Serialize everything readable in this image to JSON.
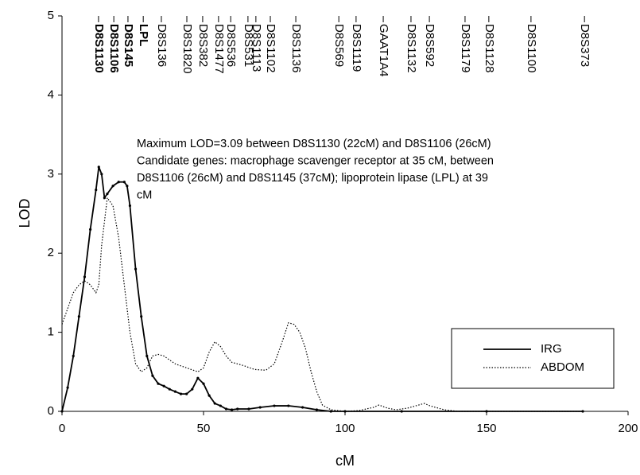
{
  "chart_data": {
    "type": "line",
    "xlabel": "cM",
    "ylabel": "LOD",
    "xlim": [
      0,
      200
    ],
    "xticks": [
      0,
      50,
      100,
      150,
      200
    ],
    "ylim": [
      0,
      5
    ],
    "yticks": [
      0,
      1,
      2,
      3,
      4,
      5
    ],
    "legend": "lower right",
    "annotation": [
      "Maximum LOD=3.09 between D8S1130 (22cM) and D8S1106 (26cM)",
      "Candidate genes: macrophage scavenger receptor at 35 cM, between",
      "D8S1106 (26cM) and D8S1145 (37cM); lipoprotein lipase (LPL) at 39",
      "cM"
    ],
    "markers": [
      {
        "name": "D8S1130",
        "x": 12.9,
        "bold": true
      },
      {
        "name": "D8S1106",
        "x": 18.3,
        "bold": true
      },
      {
        "name": "D8S145",
        "x": 23.3,
        "bold": true
      },
      {
        "name": "LPL",
        "x": 28.7,
        "bold": true
      },
      {
        "name": "D8S136",
        "x": 35.1,
        "bold": false
      },
      {
        "name": "D8S1820",
        "x": 44.1,
        "bold": false
      },
      {
        "name": "D8S382",
        "x": 49.7,
        "bold": false
      },
      {
        "name": "D8S1477",
        "x": 55.3,
        "bold": false
      },
      {
        "name": "D8S536",
        "x": 59.6,
        "bold": false
      },
      {
        "name": "D8S531",
        "x": 65.7,
        "bold": false
      },
      {
        "name": "D8S1113",
        "x": 68.5,
        "bold": false
      },
      {
        "name": "D8S1102",
        "x": 73.6,
        "bold": false
      },
      {
        "name": "D8S1136",
        "x": 82.6,
        "bold": false
      },
      {
        "name": "D8S569",
        "x": 97.8,
        "bold": false
      },
      {
        "name": "D8S1119",
        "x": 103.9,
        "bold": false
      },
      {
        "name": "GAAT1A4",
        "x": 113.5,
        "bold": false
      },
      {
        "name": "D8S1132",
        "x": 123.3,
        "bold": false
      },
      {
        "name": "D8S592",
        "x": 129.8,
        "bold": false
      },
      {
        "name": "D8S1179",
        "x": 142.4,
        "bold": false
      },
      {
        "name": "D8S1128",
        "x": 150.8,
        "bold": false
      },
      {
        "name": "D8S1100",
        "x": 165.7,
        "bold": false
      },
      {
        "name": "D8S373",
        "x": 184.6,
        "bold": false
      }
    ],
    "series": [
      {
        "name": "IRG",
        "color": "#000000",
        "style": "solid",
        "x": [
          0,
          2,
          4,
          6,
          8,
          10,
          12,
          13,
          14,
          15,
          16,
          18,
          20,
          22,
          23,
          24,
          26,
          28,
          30,
          32,
          34,
          36,
          38,
          40,
          42,
          44,
          46,
          48,
          50,
          52,
          54,
          56,
          58,
          60,
          62,
          66,
          70,
          75,
          80,
          85,
          90,
          95,
          100,
          120,
          150,
          184
        ],
        "values": [
          0,
          0.3,
          0.7,
          1.2,
          1.7,
          2.3,
          2.8,
          3.09,
          3.0,
          2.7,
          2.75,
          2.85,
          2.9,
          2.9,
          2.85,
          2.6,
          1.8,
          1.2,
          0.7,
          0.45,
          0.35,
          0.32,
          0.28,
          0.25,
          0.22,
          0.22,
          0.28,
          0.42,
          0.35,
          0.2,
          0.1,
          0.07,
          0.03,
          0.02,
          0.03,
          0.03,
          0.05,
          0.07,
          0.07,
          0.05,
          0.02,
          0,
          0,
          0,
          0,
          0
        ]
      },
      {
        "name": "ABDOM",
        "color": "#000000",
        "style": "dotted",
        "x": [
          0,
          2,
          4,
          6,
          8,
          10,
          12,
          13,
          14,
          16,
          18,
          20,
          22,
          24,
          26,
          28,
          30,
          32,
          34,
          36,
          38,
          40,
          44,
          48,
          50,
          52,
          54,
          56,
          58,
          60,
          64,
          68,
          72,
          75,
          78,
          80,
          82,
          84,
          86,
          88,
          90,
          92,
          95,
          100,
          105,
          110,
          112,
          115,
          118,
          122,
          126,
          128,
          130,
          135,
          140,
          184
        ],
        "values": [
          1.1,
          1.3,
          1.5,
          1.6,
          1.65,
          1.6,
          1.5,
          1.6,
          2.1,
          2.7,
          2.6,
          2.2,
          1.6,
          1.0,
          0.6,
          0.5,
          0.55,
          0.7,
          0.72,
          0.7,
          0.65,
          0.6,
          0.55,
          0.5,
          0.55,
          0.75,
          0.88,
          0.82,
          0.7,
          0.62,
          0.58,
          0.53,
          0.52,
          0.6,
          0.9,
          1.12,
          1.1,
          1.0,
          0.8,
          0.5,
          0.25,
          0.08,
          0.02,
          0,
          0.01,
          0.05,
          0.08,
          0.04,
          0.02,
          0.04,
          0.08,
          0.1,
          0.07,
          0.02,
          0,
          0
        ]
      }
    ]
  }
}
